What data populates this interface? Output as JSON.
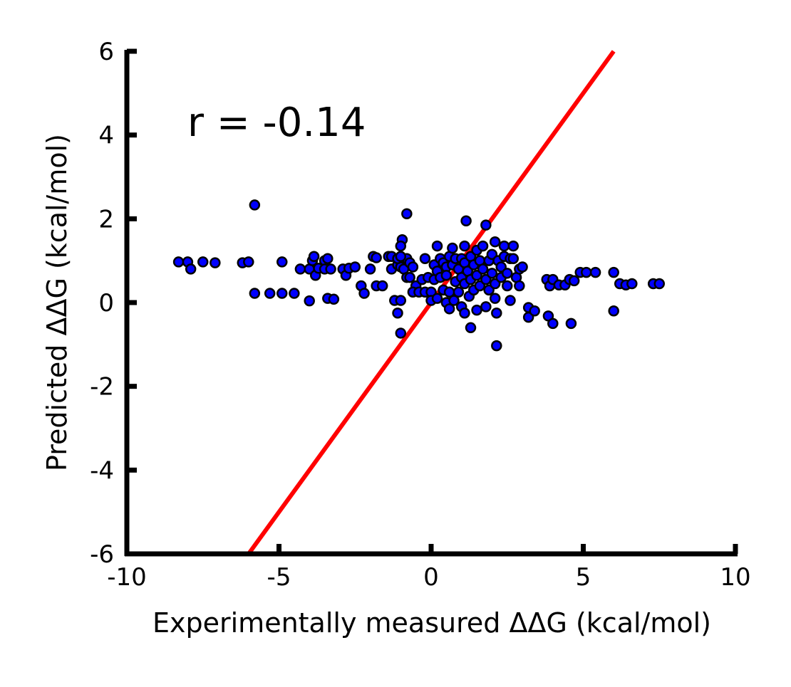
{
  "chart_data": {
    "type": "scatter",
    "title": "",
    "xlabel": "Experimentally measured ΔΔG (kcal/mol)",
    "ylabel": "Predicted ΔΔG (kcal/mol)",
    "xlim": [
      -10,
      10
    ],
    "ylim": [
      -6,
      6
    ],
    "x_ticks": [
      -10,
      -5,
      0,
      5,
      10
    ],
    "x_tick_labels": [
      "-10",
      "-5",
      "0",
      "5",
      "10"
    ],
    "y_ticks": [
      -6,
      -4,
      -2,
      0,
      2,
      4,
      6
    ],
    "y_tick_labels": [
      "-6",
      "-4",
      "-2",
      "0",
      "2",
      "4",
      "6"
    ],
    "grid": false,
    "annotation": "r = -0.14",
    "colors": {
      "marker_fill": "#0000ff",
      "marker_edge": "#000000",
      "fit_line": "#ff0000",
      "axes": "#000000"
    },
    "line": {
      "x": [
        -6.0,
        6.0
      ],
      "y": [
        -6.0,
        6.0
      ]
    },
    "points": [
      {
        "x": -8.3,
        "y": 0.97
      },
      {
        "x": -8.0,
        "y": 0.97
      },
      {
        "x": -7.9,
        "y": 0.8
      },
      {
        "x": -7.5,
        "y": 0.97
      },
      {
        "x": -7.1,
        "y": 0.95
      },
      {
        "x": -6.2,
        "y": 0.95
      },
      {
        "x": -6.0,
        "y": 0.97
      },
      {
        "x": -5.8,
        "y": 2.33
      },
      {
        "x": -5.8,
        "y": 0.22
      },
      {
        "x": -5.3,
        "y": 0.22
      },
      {
        "x": -4.9,
        "y": 0.97
      },
      {
        "x": -4.9,
        "y": 0.22
      },
      {
        "x": -4.5,
        "y": 0.22
      },
      {
        "x": -4.3,
        "y": 0.8
      },
      {
        "x": -4.0,
        "y": 0.8
      },
      {
        "x": -4.0,
        "y": 0.04
      },
      {
        "x": -3.9,
        "y": 1.0
      },
      {
        "x": -3.85,
        "y": 1.1
      },
      {
        "x": -3.8,
        "y": 0.65
      },
      {
        "x": -3.7,
        "y": 0.82
      },
      {
        "x": -3.5,
        "y": 1.0
      },
      {
        "x": -3.5,
        "y": 0.8
      },
      {
        "x": -3.4,
        "y": 1.05
      },
      {
        "x": -3.4,
        "y": 0.1
      },
      {
        "x": -3.3,
        "y": 0.8
      },
      {
        "x": -3.2,
        "y": 0.08
      },
      {
        "x": -2.9,
        "y": 0.8
      },
      {
        "x": -2.8,
        "y": 0.65
      },
      {
        "x": -2.7,
        "y": 0.82
      },
      {
        "x": -2.5,
        "y": 0.85
      },
      {
        "x": -2.3,
        "y": 0.4
      },
      {
        "x": -2.2,
        "y": 0.22
      },
      {
        "x": -2.0,
        "y": 0.8
      },
      {
        "x": -1.9,
        "y": 1.1
      },
      {
        "x": -1.8,
        "y": 1.07
      },
      {
        "x": -1.8,
        "y": 0.4
      },
      {
        "x": -1.6,
        "y": 0.4
      },
      {
        "x": -1.4,
        "y": 1.1
      },
      {
        "x": -1.3,
        "y": 1.1
      },
      {
        "x": -1.3,
        "y": 0.8
      },
      {
        "x": -1.2,
        "y": 0.05
      },
      {
        "x": -1.1,
        "y": 0.9
      },
      {
        "x": -1.0,
        "y": 0.85
      },
      {
        "x": -1.0,
        "y": 0.05
      },
      {
        "x": -0.9,
        "y": 0.8
      },
      {
        "x": -0.8,
        "y": 1.05
      },
      {
        "x": -0.7,
        "y": 0.95
      },
      {
        "x": -0.6,
        "y": 0.85
      },
      {
        "x": -0.5,
        "y": 0.4
      },
      {
        "x": -1.1,
        "y": 1.05
      },
      {
        "x": -1.0,
        "y": 1.1
      },
      {
        "x": -0.8,
        "y": 0.6
      },
      {
        "x": -0.2,
        "y": 1.05
      },
      {
        "x": -0.95,
        "y": 1.5
      },
      {
        "x": -1.0,
        "y": 1.35
      },
      {
        "x": -0.8,
        "y": 2.12
      },
      {
        "x": -1.1,
        "y": -0.25
      },
      {
        "x": -1.0,
        "y": -0.73
      },
      {
        "x": -0.7,
        "y": 0.6
      },
      {
        "x": -0.6,
        "y": 0.25
      },
      {
        "x": -0.4,
        "y": 0.25
      },
      {
        "x": -0.3,
        "y": 0.55
      },
      {
        "x": -0.2,
        "y": 0.25
      },
      {
        "x": -0.1,
        "y": 0.6
      },
      {
        "x": 0.0,
        "y": 0.25
      },
      {
        "x": 0.0,
        "y": 0.05
      },
      {
        "x": 0.1,
        "y": 0.9
      },
      {
        "x": 0.1,
        "y": 0.55
      },
      {
        "x": 0.2,
        "y": 1.35
      },
      {
        "x": 0.2,
        "y": 0.75
      },
      {
        "x": 0.2,
        "y": 0.1
      },
      {
        "x": 0.3,
        "y": 1.05
      },
      {
        "x": 0.3,
        "y": 0.6
      },
      {
        "x": 0.4,
        "y": 0.95
      },
      {
        "x": 0.4,
        "y": 0.3
      },
      {
        "x": 0.5,
        "y": 0.85
      },
      {
        "x": 0.5,
        "y": 0.65
      },
      {
        "x": 0.5,
        "y": 0.0
      },
      {
        "x": 0.6,
        "y": 1.1
      },
      {
        "x": 0.6,
        "y": 0.25
      },
      {
        "x": 0.6,
        "y": -0.15
      },
      {
        "x": 0.7,
        "y": 0.9
      },
      {
        "x": 0.7,
        "y": 1.3
      },
      {
        "x": 0.75,
        "y": 0.05
      },
      {
        "x": 0.8,
        "y": 1.05
      },
      {
        "x": 0.8,
        "y": 0.5
      },
      {
        "x": 0.9,
        "y": 0.8
      },
      {
        "x": 0.9,
        "y": 0.25
      },
      {
        "x": 1.0,
        "y": 1.05
      },
      {
        "x": 1.0,
        "y": 0.6
      },
      {
        "x": 1.0,
        "y": -0.1
      },
      {
        "x": 1.1,
        "y": 1.35
      },
      {
        "x": 1.1,
        "y": 0.95
      },
      {
        "x": 1.1,
        "y": 0.45
      },
      {
        "x": 1.1,
        "y": -0.25
      },
      {
        "x": 1.15,
        "y": 1.95
      },
      {
        "x": 1.2,
        "y": 0.75
      },
      {
        "x": 1.25,
        "y": 0.15
      },
      {
        "x": 1.3,
        "y": 1.1
      },
      {
        "x": 1.3,
        "y": 0.55
      },
      {
        "x": 1.3,
        "y": -0.6
      },
      {
        "x": 1.4,
        "y": 0.9
      },
      {
        "x": 1.4,
        "y": 0.3
      },
      {
        "x": 1.5,
        "y": 1.25
      },
      {
        "x": 1.5,
        "y": 0.65
      },
      {
        "x": 1.5,
        "y": -0.18
      },
      {
        "x": 1.6,
        "y": 1.0
      },
      {
        "x": 1.6,
        "y": 0.4
      },
      {
        "x": 1.7,
        "y": 1.35
      },
      {
        "x": 1.7,
        "y": 0.8
      },
      {
        "x": 1.8,
        "y": 1.85
      },
      {
        "x": 1.8,
        "y": 0.55
      },
      {
        "x": 1.8,
        "y": -0.1
      },
      {
        "x": 1.9,
        "y": 1.0
      },
      {
        "x": 1.9,
        "y": 0.3
      },
      {
        "x": 2.0,
        "y": 1.15
      },
      {
        "x": 2.0,
        "y": 0.7
      },
      {
        "x": 2.1,
        "y": 1.45
      },
      {
        "x": 2.1,
        "y": 0.45
      },
      {
        "x": 2.1,
        "y": 0.1
      },
      {
        "x": 2.15,
        "y": -0.25
      },
      {
        "x": 2.15,
        "y": -1.03
      },
      {
        "x": 2.2,
        "y": 1.0
      },
      {
        "x": 2.3,
        "y": 0.85
      },
      {
        "x": 2.3,
        "y": 0.6
      },
      {
        "x": 2.4,
        "y": 1.35
      },
      {
        "x": 2.4,
        "y": 1.1
      },
      {
        "x": 2.5,
        "y": 0.7
      },
      {
        "x": 2.5,
        "y": 0.4
      },
      {
        "x": 2.6,
        "y": 1.05
      },
      {
        "x": 2.6,
        "y": 0.05
      },
      {
        "x": 2.7,
        "y": 1.35
      },
      {
        "x": 2.7,
        "y": 1.05
      },
      {
        "x": 2.8,
        "y": 0.6
      },
      {
        "x": 2.9,
        "y": 0.8
      },
      {
        "x": 2.9,
        "y": 0.4
      },
      {
        "x": 3.0,
        "y": 0.85
      },
      {
        "x": 3.2,
        "y": -0.12
      },
      {
        "x": 3.2,
        "y": -0.35
      },
      {
        "x": 3.4,
        "y": -0.2
      },
      {
        "x": 3.8,
        "y": 0.55
      },
      {
        "x": 3.85,
        "y": -0.32
      },
      {
        "x": 3.9,
        "y": 0.4
      },
      {
        "x": 4.0,
        "y": 0.55
      },
      {
        "x": 4.0,
        "y": -0.5
      },
      {
        "x": 4.2,
        "y": 0.42
      },
      {
        "x": 4.4,
        "y": 0.42
      },
      {
        "x": 4.55,
        "y": 0.55
      },
      {
        "x": 4.6,
        "y": -0.5
      },
      {
        "x": 4.7,
        "y": 0.52
      },
      {
        "x": 4.9,
        "y": 0.72
      },
      {
        "x": 5.1,
        "y": 0.72
      },
      {
        "x": 5.4,
        "y": 0.72
      },
      {
        "x": 6.0,
        "y": 0.72
      },
      {
        "x": 6.0,
        "y": -0.2
      },
      {
        "x": 6.2,
        "y": 0.45
      },
      {
        "x": 6.4,
        "y": 0.42
      },
      {
        "x": 6.6,
        "y": 0.45
      },
      {
        "x": 7.3,
        "y": 0.45
      },
      {
        "x": 7.5,
        "y": 0.45
      }
    ]
  }
}
